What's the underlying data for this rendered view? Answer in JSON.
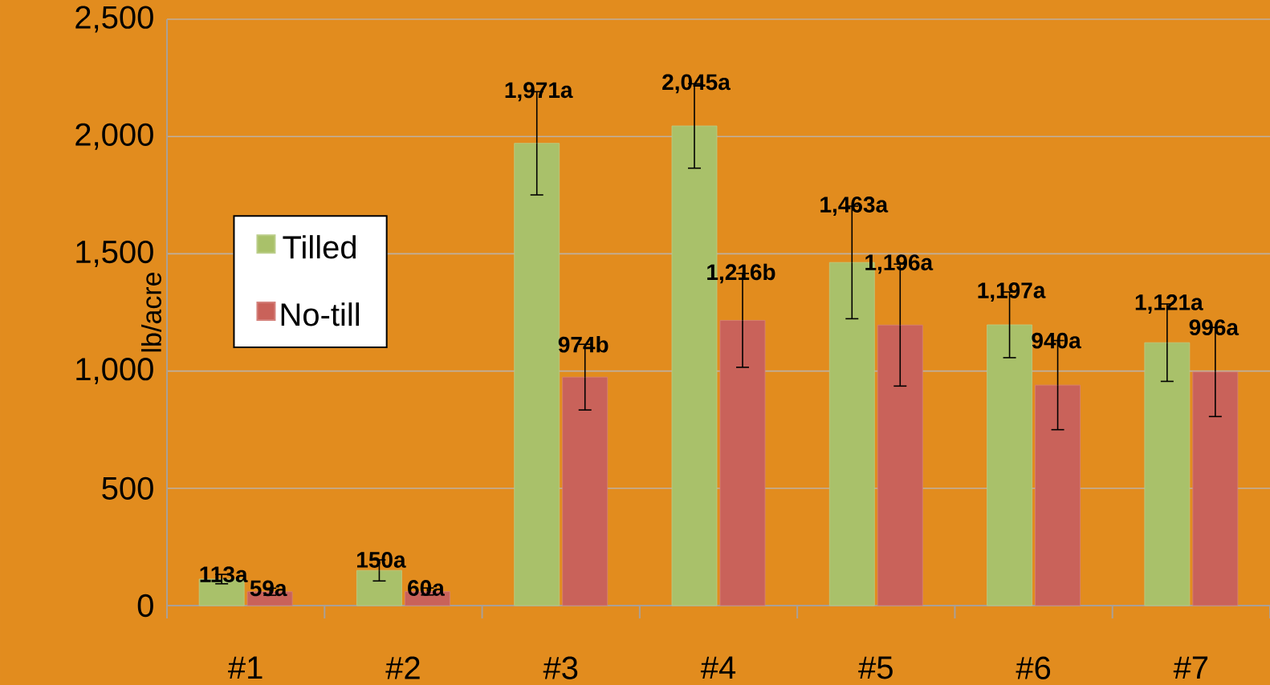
{
  "chart_data": {
    "type": "bar",
    "ylabel": "lb/acre",
    "categories": [
      "#1",
      "#2",
      "#3",
      "#4",
      "#5",
      "#6",
      "#7"
    ],
    "series": [
      {
        "name": "Tilled",
        "color": "#a9c16a",
        "values": [
          113,
          150,
          1971,
          2045,
          1463,
          1197,
          1121
        ],
        "errors": [
          20,
          45,
          220,
          180,
          240,
          140,
          165
        ],
        "value_labels": [
          "113a",
          "150a",
          "1,971a",
          "2,045a",
          "1,463a",
          "1,197a",
          "1,121a"
        ]
      },
      {
        "name": "No-till",
        "color": "#c9625a",
        "values": [
          59,
          60,
          974,
          1216,
          1196,
          940,
          996
        ],
        "errors": [
          15,
          15,
          140,
          200,
          260,
          190,
          190
        ],
        "value_labels": [
          "59a",
          "60a",
          "974b",
          "1,216b",
          "1,196a",
          "940a",
          "996a"
        ]
      }
    ],
    "ylim": [
      0,
      2500
    ],
    "yticks": [
      0,
      500,
      {
        "value": 1000,
        "label": "1,000"
      },
      {
        "value": 1500,
        "label": "1,500"
      },
      {
        "value": 2000,
        "label": "2,000"
      },
      {
        "value": 2500,
        "label": "2,500"
      }
    ],
    "grid": "y",
    "legend": "left"
  }
}
